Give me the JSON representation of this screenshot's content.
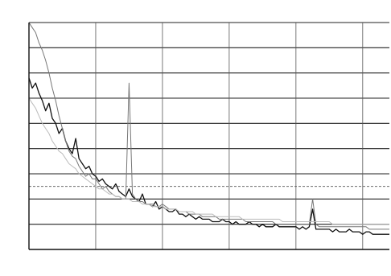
{
  "figure": {
    "top_title": "",
    "source_note": "",
    "caption": ""
  },
  "chart_data": {
    "type": "line",
    "title": "",
    "xlabel": "",
    "ylabel": "",
    "x_ticks": [
      {
        "value": 1,
        "label": ""
      },
      {
        "value": 11,
        "label": ""
      },
      {
        "value": 21,
        "label": ""
      },
      {
        "value": 31,
        "label": ""
      },
      {
        "value": 41,
        "label": ""
      },
      {
        "value": 51,
        "label": ""
      }
    ],
    "xlim": [
      1,
      55
    ],
    "y_ticks": [
      {
        "value": 1,
        "label": ""
      },
      {
        "value": 2,
        "label": ""
      },
      {
        "value": 3,
        "label": ""
      },
      {
        "value": 4,
        "label": ""
      },
      {
        "value": 5,
        "label": ""
      },
      {
        "value": 6,
        "label": ""
      },
      {
        "value": 7,
        "label": ""
      },
      {
        "value": 8,
        "label": ""
      },
      {
        "value": 9,
        "label": ""
      },
      {
        "value": 10,
        "label": ""
      }
    ],
    "ylim": [
      1,
      10
    ],
    "grid": {
      "horizontal": true,
      "vertical": true
    },
    "legend_position": "top-right",
    "annotations": [
      {
        "text": "",
        "x": 2,
        "y": 3.6
      }
    ],
    "reference_lines": [
      {
        "name": "",
        "y": 3.5,
        "color": "#555555",
        "dash": "3,2"
      }
    ],
    "series": [
      {
        "name": "",
        "color": "#111111",
        "width": 1.3,
        "x": [
          1,
          1.5,
          2,
          2.5,
          3,
          3.5,
          4,
          4.5,
          5,
          5.5,
          6,
          6.5,
          7,
          7.5,
          8,
          8.5,
          9,
          9.5,
          10,
          10.5,
          11,
          11.5,
          12,
          12.5,
          13,
          13.5,
          14,
          14.5,
          15,
          15.5,
          16,
          16.5,
          17,
          17.5,
          18,
          18.5,
          19,
          19.5,
          20,
          20.5,
          21,
          21.5,
          22,
          22.5,
          23,
          23.5,
          24,
          24.5,
          25,
          25.5,
          26,
          26.5,
          27,
          27.5,
          28,
          28.5,
          29,
          29.5,
          30,
          30.5,
          31,
          31.5,
          32,
          32.5,
          33,
          33.5,
          34,
          34.5,
          35,
          35.5,
          36,
          36.5,
          37,
          37.5,
          38,
          38.5,
          39,
          39.5,
          40,
          40.5,
          41,
          41.5,
          42,
          42.5,
          43,
          43.5,
          44,
          44.5,
          45,
          45.5,
          46,
          46.5,
          47,
          47.5,
          48,
          48.5,
          49,
          49.5,
          50,
          50.5,
          51,
          51.5,
          52,
          52.5,
          53,
          53.5,
          54,
          54.5,
          55
        ],
        "values": [
          7.8,
          7.4,
          7.6,
          7.2,
          6.9,
          6.5,
          6.8,
          6.2,
          6.0,
          5.6,
          5.8,
          5.3,
          5.0,
          4.8,
          5.4,
          4.6,
          4.4,
          4.2,
          4.3,
          4.0,
          3.9,
          3.7,
          3.8,
          3.6,
          3.5,
          3.4,
          3.6,
          3.3,
          3.2,
          3.1,
          3.4,
          3.1,
          3.0,
          2.9,
          3.2,
          2.8,
          2.8,
          2.7,
          2.9,
          2.6,
          2.7,
          2.6,
          2.5,
          2.5,
          2.6,
          2.4,
          2.4,
          2.3,
          2.4,
          2.3,
          2.2,
          2.3,
          2.2,
          2.2,
          2.2,
          2.1,
          2.1,
          2.1,
          2.2,
          2.1,
          2.1,
          2.0,
          2.1,
          2.0,
          2.0,
          2.0,
          2.1,
          2.0,
          2.0,
          1.9,
          2.0,
          1.9,
          1.9,
          1.9,
          2.0,
          1.9,
          1.9,
          1.9,
          1.9,
          1.9,
          1.9,
          1.8,
          1.9,
          1.8,
          1.9,
          2.6,
          1.8,
          1.8,
          1.8,
          1.8,
          1.8,
          1.7,
          1.8,
          1.7,
          1.7,
          1.7,
          1.8,
          1.7,
          1.7,
          1.7,
          1.6,
          1.7,
          1.7,
          1.6,
          1.6,
          1.6,
          1.6,
          1.6,
          1.6
        ]
      },
      {
        "name": "",
        "color": "#777777",
        "width": 1.0,
        "x": [
          1,
          1.5,
          2,
          2.5,
          3,
          3.5,
          4,
          4.5,
          5,
          5.5,
          6,
          6.5,
          7,
          7.5,
          8,
          8.5,
          9,
          9.5,
          10,
          10.5,
          11,
          11.5,
          12,
          12.5,
          13,
          13.5,
          14,
          14.5,
          15,
          15.5,
          16,
          16.5,
          17,
          17.5,
          18,
          18.5,
          19,
          19.5,
          20,
          20.5,
          21,
          21.5,
          22,
          22.5,
          23,
          23.5,
          24,
          24.5,
          25,
          25.5,
          26,
          26.5,
          27,
          27.5,
          28,
          28.5,
          29,
          29.5,
          30,
          30.5,
          31,
          31.5,
          32,
          32.5,
          33,
          33.5,
          34,
          34.5,
          35,
          35.5,
          36,
          36.5,
          37,
          37.5,
          38,
          38.5,
          39,
          39.5,
          40,
          40.5,
          41,
          41.5,
          42,
          42.5,
          43,
          43.5,
          44,
          44.5,
          45,
          45.5,
          46,
          46.5,
          47,
          47.5,
          48,
          48.5,
          49,
          49.5,
          50,
          50.5,
          51,
          51.5,
          52,
          52.5,
          53,
          53.5,
          54,
          54.5,
          55
        ],
        "values": [
          10,
          9.8,
          9.6,
          9.2,
          8.9,
          8.5,
          8.0,
          7.4,
          6.9,
          6.3,
          5.8,
          5.3,
          4.9,
          4.7,
          4.6,
          4.3,
          4.1,
          3.9,
          4.0,
          3.8,
          3.8,
          3.6,
          3.4,
          3.5,
          3.3,
          3.2,
          3.1,
          3.1,
          3.0,
          3.0,
          7.6,
          3.2,
          3.0,
          2.9,
          2.9,
          2.8,
          2.8,
          2.8,
          2.7,
          2.7,
          2.8,
          2.7,
          2.6,
          2.6,
          2.6,
          2.5,
          2.5,
          2.5,
          2.4,
          2.4,
          2.4,
          2.4,
          2.3,
          2.3,
          2.3,
          2.3,
          2.3,
          2.2,
          2.2,
          2.2,
          2.2,
          2.2,
          2.2,
          2.2,
          2.2,
          2.1,
          2.1,
          2.1,
          2.1,
          2.1,
          2.1,
          2.1,
          2.1,
          2.1,
          2.0,
          2.0,
          2.0,
          2.0,
          2.0,
          2.0,
          2.0,
          2.0,
          2.0,
          2.0,
          2.0,
          3.0,
          2.0,
          1.9,
          1.9,
          1.9,
          1.9,
          1.9,
          1.9,
          1.9,
          1.9,
          1.9,
          1.9,
          1.9,
          1.9,
          1.9,
          1.9,
          1.9,
          1.8,
          1.8,
          1.8,
          1.8,
          1.8,
          1.8,
          1.8
        ]
      },
      {
        "name": "",
        "color": "#bbbbbb",
        "width": 1.0,
        "x": [
          1,
          1.5,
          2,
          2.5,
          3,
          3.5,
          4,
          4.5,
          5,
          5.5,
          6,
          6.5,
          7,
          7.5,
          8,
          8.5,
          9,
          9.5,
          10,
          10.5,
          11,
          11.5,
          12,
          12.5,
          13,
          13.5,
          14,
          14.5,
          15,
          15.5,
          16,
          16.5,
          17,
          17.5,
          18,
          18.5,
          19,
          19.5,
          20,
          20.5,
          21,
          21.5,
          22,
          22.5,
          23,
          23.5,
          24,
          24.5,
          25,
          25.5,
          26,
          26.5,
          27,
          27.5,
          28,
          28.5,
          29,
          29.5,
          30,
          30.5,
          31,
          31.5,
          32,
          32.5,
          33,
          33.5,
          34,
          34.5,
          35,
          35.5,
          36,
          36.5,
          37,
          37.5,
          38,
          38.5,
          39,
          39.5,
          40,
          40.5,
          41,
          41.5,
          42,
          42.5,
          43,
          43.5,
          44,
          44.5,
          45,
          45.5,
          46,
          46.5,
          47,
          47.5,
          48,
          48.5,
          49,
          49.5,
          50,
          50.5,
          51,
          51.5,
          52,
          52.5,
          53,
          53.5,
          54,
          54.5,
          55
        ],
        "values": [
          7.0,
          6.8,
          6.6,
          6.3,
          6.0,
          5.8,
          5.6,
          5.3,
          5.1,
          4.9,
          4.8,
          4.6,
          4.4,
          4.3,
          4.2,
          4.0,
          3.9,
          3.8,
          3.7,
          3.6,
          3.5,
          3.4,
          3.4,
          3.3,
          3.2,
          3.2,
          3.1,
          3.1,
          3.0,
          3.0,
          3.0,
          2.9,
          2.9,
          2.9,
          2.8,
          2.8,
          2.8,
          2.7,
          2.7,
          2.7,
          2.7,
          2.6,
          2.6,
          2.6,
          2.6,
          2.5,
          2.5,
          2.5,
          2.5,
          2.5,
          2.4,
          2.4,
          2.4,
          2.4,
          2.4,
          2.4,
          2.3,
          2.3,
          2.3,
          2.3,
          2.3,
          2.3,
          2.3,
          2.3,
          2.2,
          2.2,
          2.2,
          2.2,
          2.2,
          2.2,
          2.2,
          2.2,
          2.2,
          2.2,
          2.2,
          2.2,
          2.1,
          2.1,
          2.1,
          2.1,
          2.1,
          2.1,
          2.1,
          2.1,
          2.1,
          2.1,
          2.1,
          2.1,
          2.1,
          2.1,
          2.1,
          2.0,
          2.0,
          2.0,
          2.0,
          2.0,
          2.0,
          2.0,
          2.0,
          2.0,
          2.0,
          2.0,
          2.0,
          2.0,
          2.0,
          2.0,
          2.0,
          2.0,
          2.0
        ]
      }
    ]
  }
}
